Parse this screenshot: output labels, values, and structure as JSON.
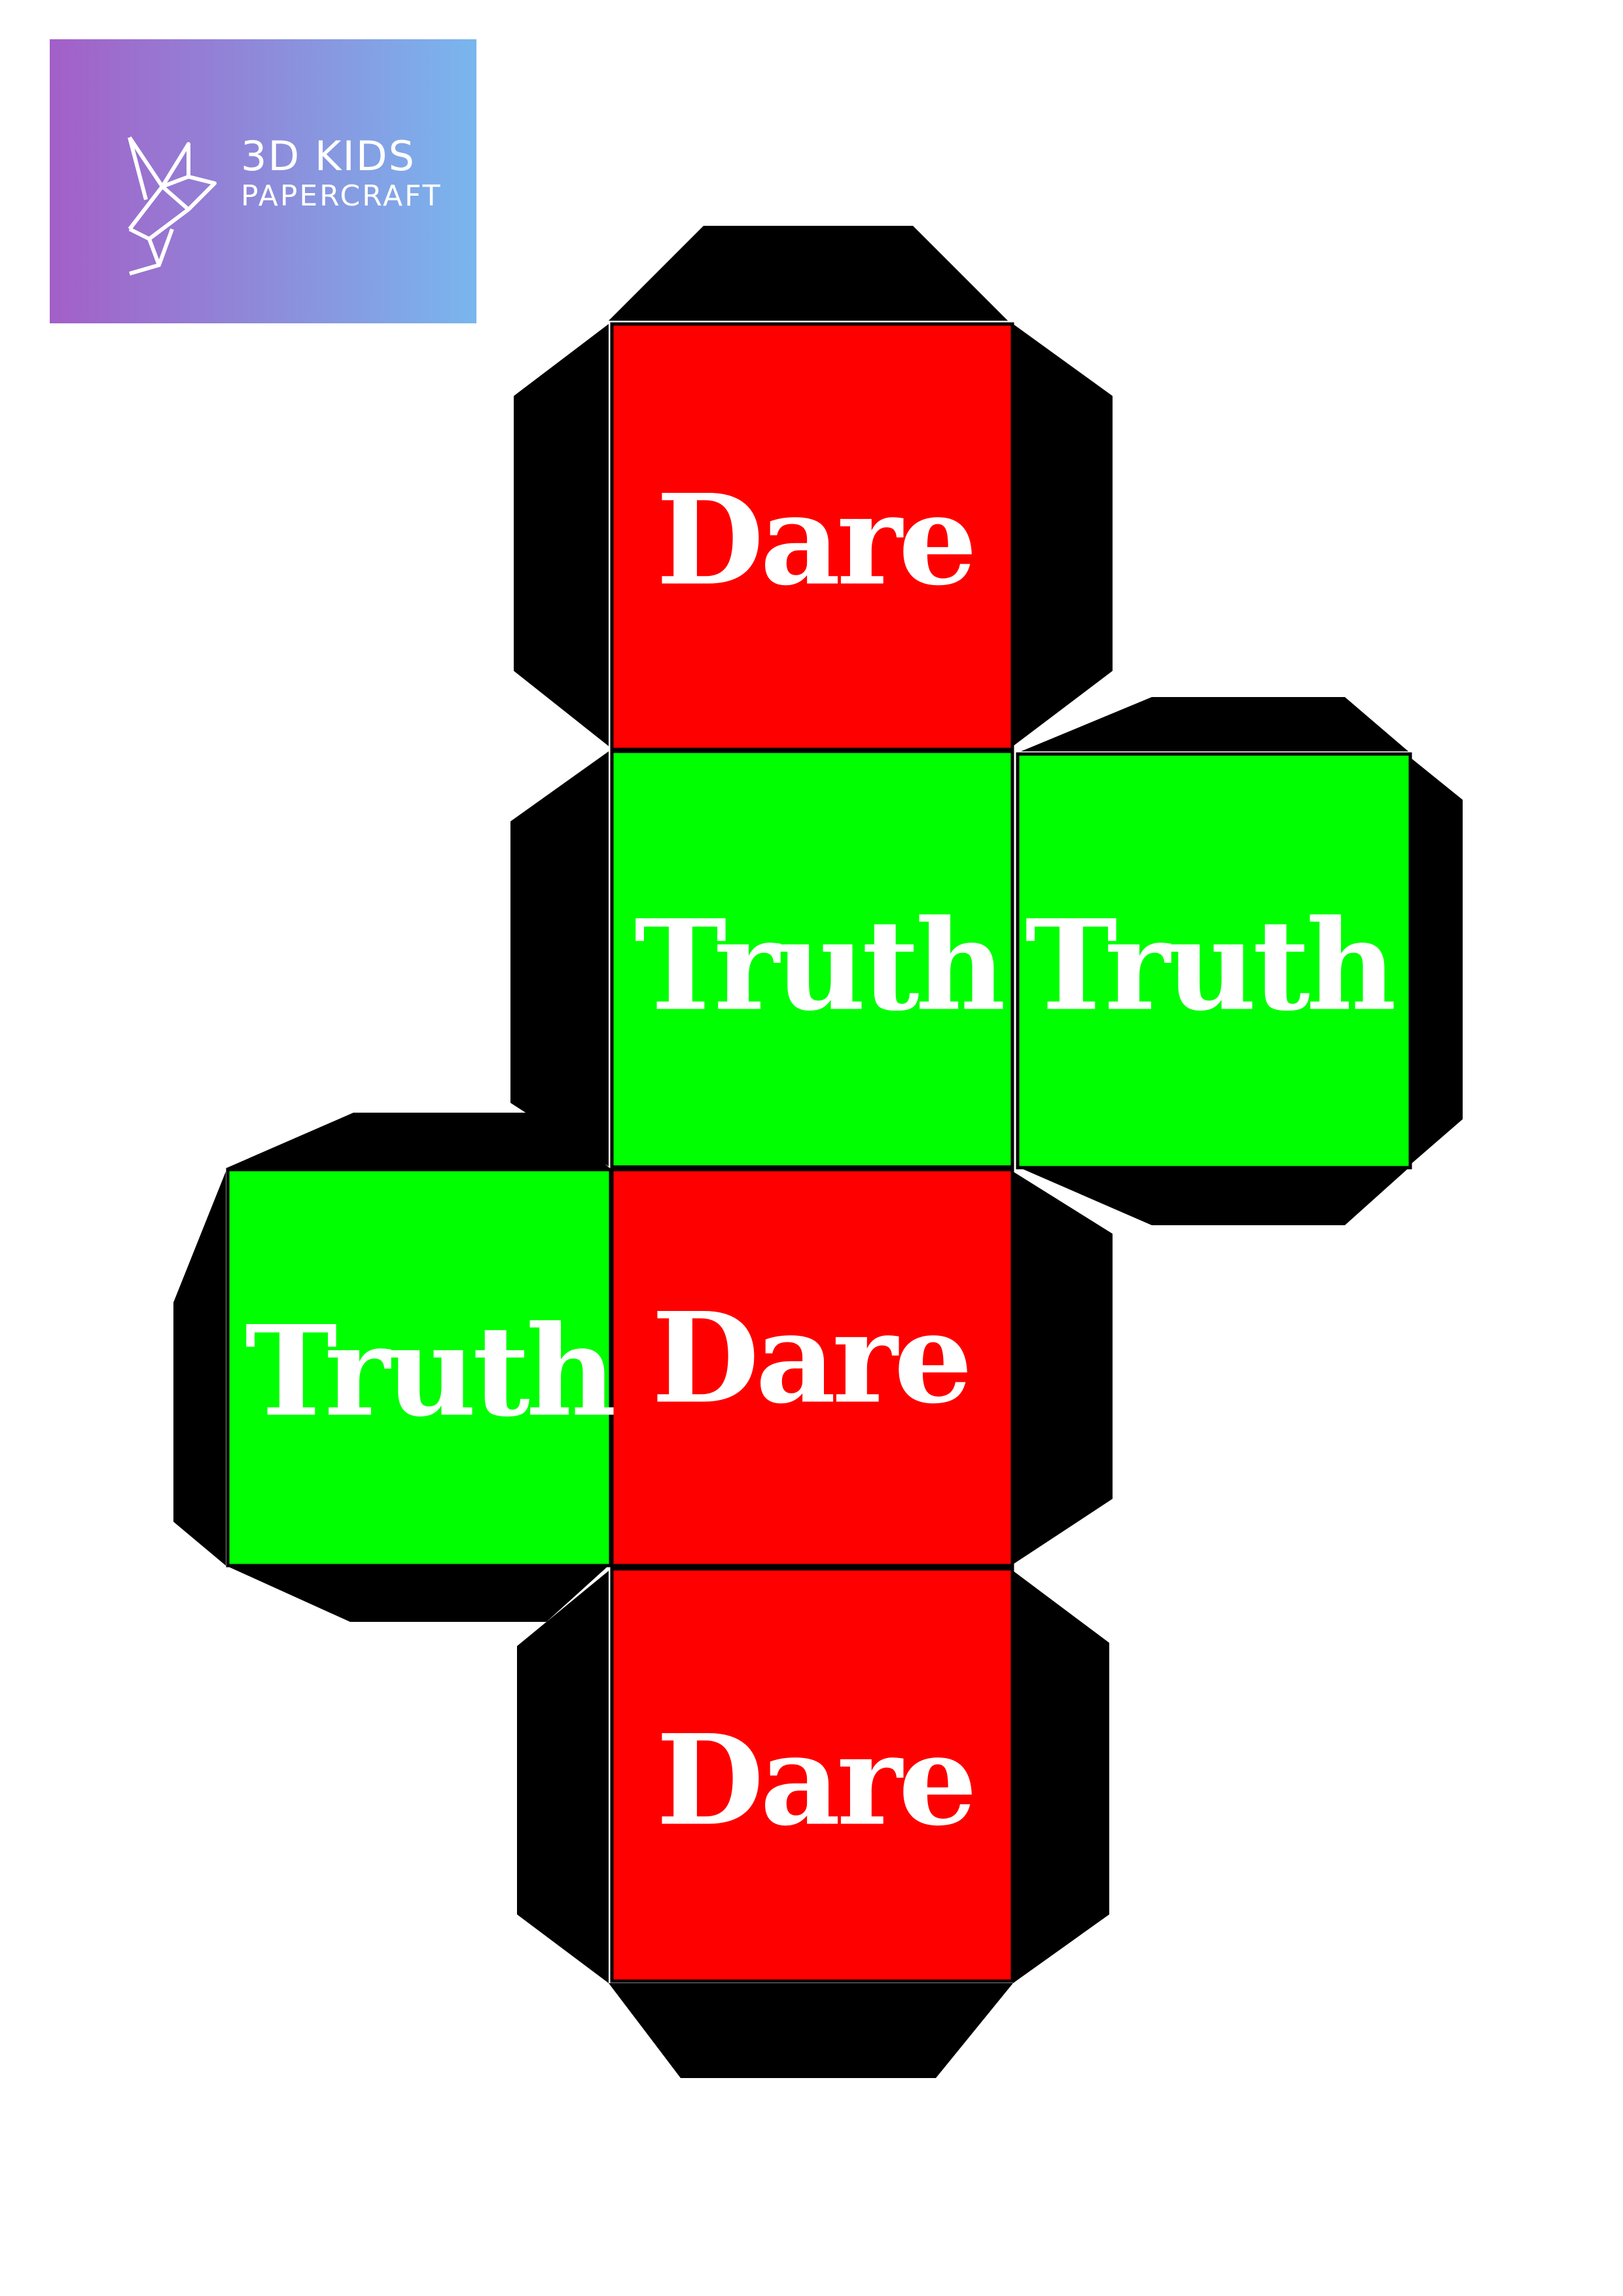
{
  "logo": {
    "line1": "3D KIDS",
    "line2": "PAPERCRAFT",
    "icon": "origami-bird-icon",
    "gradient_start": "#a35fc7",
    "gradient_end": "#79b6ee"
  },
  "faces": [
    {
      "label": "Dare",
      "color": "#ff0000"
    },
    {
      "label": "Truth",
      "color": "#00ff00"
    },
    {
      "label": "Truth",
      "color": "#00ff00"
    },
    {
      "label": "Truth",
      "color": "#00ff00"
    },
    {
      "label": "Dare",
      "color": "#ff0000"
    },
    {
      "label": "Dare",
      "color": "#ff0000"
    }
  ],
  "tab_color": "#000000",
  "label_color": "#ffffff"
}
